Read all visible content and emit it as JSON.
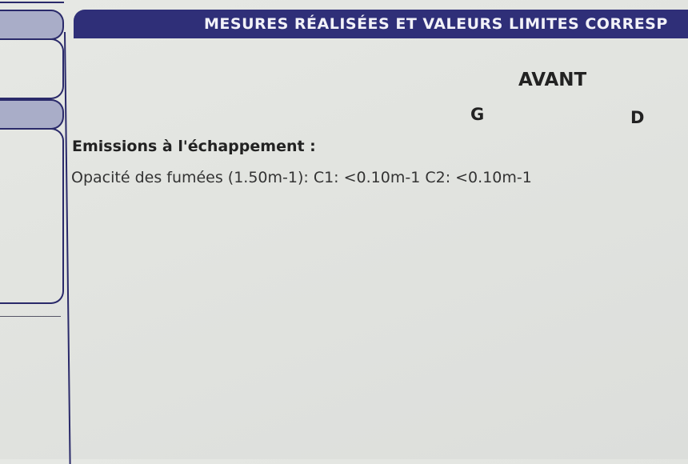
{
  "header": {
    "title": "MESURES RÉALISÉES ET VALEURS LIMITES CORRESP"
  },
  "columns": {
    "group": "AVANT",
    "left": "G",
    "right": "D"
  },
  "section": {
    "title": "Emissions à l'échappement :",
    "line": "Opacité des fumées (1.50m-1): C1: <0.10m-1 C2: <0.10m-1"
  },
  "colors": {
    "band": "#2f2f78",
    "tab": "#a9adc8",
    "paper": "#e3e5e1"
  }
}
